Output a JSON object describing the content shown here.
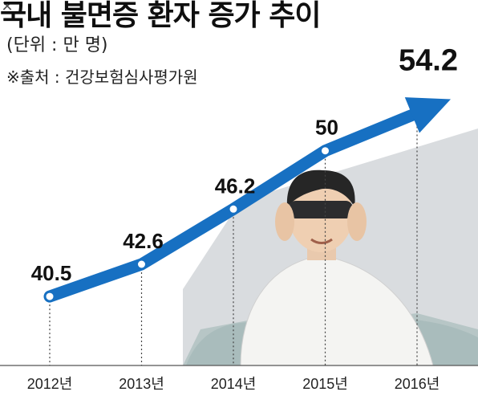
{
  "title": "국내 불면증 환자 증가 추이",
  "unit_label": "(단위 : 만 명)",
  "source_label": "※출처 : 건강보험심사평가원",
  "colors": {
    "arrow": "#1770c2",
    "text": "#111111",
    "guide": "#444444",
    "backdrop": "#d2d5d9"
  },
  "chart_data": {
    "type": "line",
    "title": "국내 불면증 환자 증가 추이",
    "ylabel": "(단위 : 만 명)",
    "xlabel": "",
    "categories": [
      "2012년",
      "2013년",
      "2014년",
      "2015년",
      "2016년"
    ],
    "values": [
      40.5,
      42.6,
      46.2,
      50,
      54.2
    ],
    "value_labels": [
      "40.5",
      "42.6",
      "46.2",
      "50",
      "54.2"
    ],
    "ylim": [
      36,
      58
    ],
    "grid": false,
    "legend": "none"
  }
}
